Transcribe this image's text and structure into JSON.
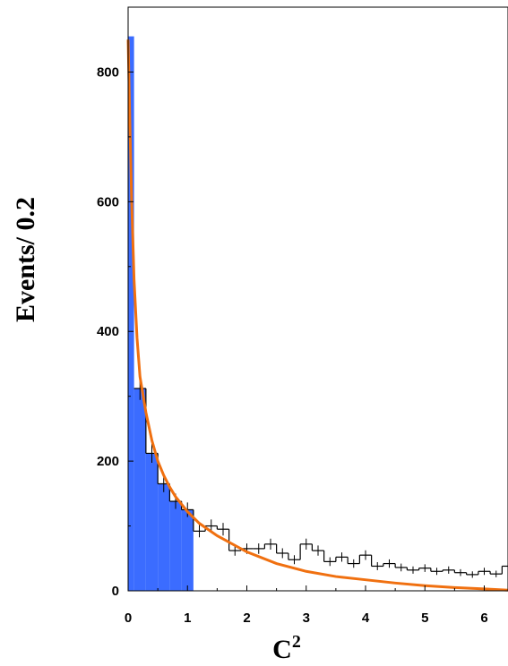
{
  "chart_data": {
    "type": "bar",
    "xlabel": "C",
    "xlabel_superscript": "2",
    "ylabel": "Events/ 0.2",
    "xlim": [
      0,
      6.4
    ],
    "ylim": [
      0,
      900
    ],
    "x_ticks": [
      "0",
      "1",
      "2",
      "3",
      "4",
      "5",
      "6"
    ],
    "y_ticks": [
      "0",
      "200",
      "400",
      "600",
      "800"
    ],
    "bin_width": 0.2,
    "colors": {
      "filled_bars": "#3b6cff",
      "fit_curve": "#f07010",
      "histogram": "#000000",
      "frame": "#000000"
    },
    "filled_histogram": {
      "x_start": [
        0.0,
        0.1,
        0.3,
        0.5,
        0.7,
        0.9
      ],
      "x_end": [
        0.1,
        0.3,
        0.5,
        0.7,
        0.9,
        1.1
      ],
      "values": [
        855,
        312,
        212,
        165,
        138,
        125
      ]
    },
    "data_histogram": {
      "x_start": 0.1,
      "values": [
        312,
        212,
        165,
        138,
        125,
        92,
        100,
        95,
        62,
        65,
        65,
        72,
        58,
        48,
        72,
        62,
        45,
        52,
        42,
        55,
        38,
        42,
        36,
        32,
        35,
        30,
        32,
        28,
        25,
        30,
        26,
        38,
        24,
        12
      ]
    },
    "fit_curve": {
      "x": [
        0.0,
        0.03,
        0.06,
        0.1,
        0.15,
        0.2,
        0.3,
        0.4,
        0.5,
        0.6,
        0.7,
        0.8,
        1.0,
        1.2,
        1.5,
        2.0,
        2.5,
        3.0,
        3.5,
        4.0,
        4.5,
        5.0,
        5.5,
        6.0,
        6.4
      ],
      "y": [
        850,
        720,
        600,
        480,
        390,
        330,
        275,
        232,
        200,
        178,
        160,
        145,
        122,
        104,
        85,
        60,
        42,
        30,
        22,
        17,
        12,
        8,
        5,
        3,
        1
      ]
    }
  }
}
